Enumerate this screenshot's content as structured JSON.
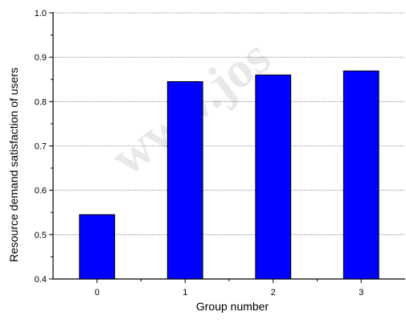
{
  "chart_data": {
    "type": "bar",
    "categories": [
      "0",
      "1",
      "2",
      "3"
    ],
    "values": [
      0.545,
      0.845,
      0.86,
      0.869
    ],
    "title": "",
    "xlabel": "Group number",
    "ylabel": "Resource demand satisfaction of users",
    "ylim": [
      0.4,
      1.0
    ],
    "yticks": [
      "0.4",
      "0.5",
      "0.6",
      "0.7",
      "0.8",
      "0.9",
      "1.0"
    ],
    "grid": "horizontal dotted at major ticks",
    "legend": "none",
    "bar_color": "#0000ff",
    "bar_edge_color": "#000000"
  },
  "watermark": "www.jos"
}
